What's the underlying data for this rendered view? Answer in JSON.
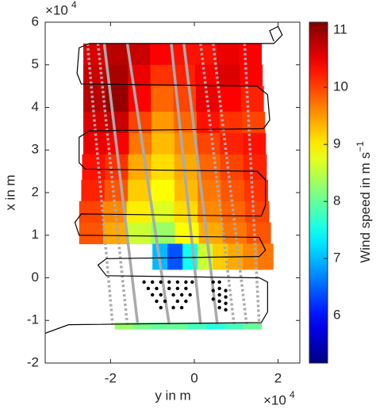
{
  "chart_data": {
    "type": "map",
    "x_label": "y in m",
    "y_label": "x in m",
    "x_offset": {
      "base": "×10",
      "exponent": "4"
    },
    "y_offset": {
      "base": "×10",
      "exponent": "4"
    },
    "xlim": [
      -3.56,
      2.52
    ],
    "ylim": [
      -2,
      6
    ],
    "xticks": [
      -2,
      0,
      2
    ],
    "yticks": [
      -2,
      -1,
      0,
      1,
      2,
      3,
      4,
      5,
      6
    ],
    "colormap": "jet",
    "colorbar": {
      "label": "Wind speed in m s",
      "label_exponent": "−1",
      "lim": [
        5.17,
        11.14
      ],
      "ticks": [
        6,
        7,
        8,
        9,
        10,
        11
      ]
    },
    "field": [
      {
        "y0": 5.0,
        "y1": 5.5,
        "x0": -2.65,
        "x1": 1.6,
        "values": [
          10.6,
          10.8,
          10.7,
          10.4,
          10.3,
          10.3,
          10.5,
          10.4
        ]
      },
      {
        "y0": 4.5,
        "y1": 5.0,
        "x0": -2.65,
        "x1": 1.62,
        "values": [
          10.7,
          10.9,
          10.5,
          10.1,
          10.2,
          10.4,
          10.6,
          10.4
        ]
      },
      {
        "y0": 3.9,
        "y1": 4.5,
        "x0": -2.65,
        "x1": 1.65,
        "values": [
          10.8,
          11.0,
          10.4,
          9.8,
          10.0,
          10.5,
          10.4,
          10.2
        ]
      },
      {
        "y0": 3.4,
        "y1": 3.9,
        "x0": -2.65,
        "x1": 1.68,
        "values": [
          10.6,
          10.7,
          10.0,
          9.5,
          9.8,
          10.3,
          10.1,
          10.0
        ]
      },
      {
        "y0": 2.9,
        "y1": 3.4,
        "x0": -2.65,
        "x1": 1.7,
        "values": [
          10.5,
          10.4,
          9.7,
          9.3,
          9.6,
          10.0,
          10.2,
          10.3
        ]
      },
      {
        "y0": 2.3,
        "y1": 2.9,
        "x0": -2.68,
        "x1": 1.72,
        "values": [
          10.3,
          10.1,
          9.4,
          9.1,
          9.4,
          9.8,
          10.0,
          10.2
        ]
      },
      {
        "y0": 1.8,
        "y1": 2.3,
        "x0": -2.7,
        "x1": 1.75,
        "values": [
          10.2,
          9.9,
          9.2,
          8.9,
          9.3,
          9.7,
          9.9,
          10.1
        ]
      },
      {
        "y0": 1.3,
        "y1": 1.8,
        "x0": -2.75,
        "x1": 1.78,
        "values": [
          10.0,
          9.6,
          9.0,
          8.7,
          9.1,
          9.6,
          9.8,
          10.0
        ]
      },
      {
        "y0": 0.8,
        "y1": 1.3,
        "x0": -2.75,
        "x1": 1.82,
        "values": [
          9.9,
          9.4,
          8.6,
          8.3,
          8.9,
          9.4,
          9.7,
          9.9
        ]
      },
      {
        "y0": 0.2,
        "y1": 0.8,
        "x0": -1.0,
        "x1": 1.88,
        "values": [
          7.0,
          6.4,
          7.5,
          8.6,
          9.2,
          9.4,
          9.6,
          9.7
        ]
      },
      {
        "y0": -1.2,
        "y1": -1.05,
        "x0": -1.9,
        "x1": 1.6,
        "values": [
          8.3,
          8.1,
          8.0,
          8.0,
          7.8,
          7.6,
          7.8,
          8.0
        ]
      }
    ],
    "track": {
      "color": "#000000",
      "x": [
        -3.56,
        -3.0,
        1.6,
        1.75,
        1.75,
        1.55,
        -2.1,
        -2.3,
        -2.1,
        1.55,
        1.7,
        1.55,
        -2.75,
        -2.85,
        -2.7,
        1.6,
        1.7,
        1.7,
        1.5,
        -2.6,
        -2.75,
        -2.75,
        -2.5,
        1.65,
        1.8,
        1.75,
        1.5,
        -2.7,
        -2.8,
        -2.75,
        -2.5,
        1.9,
        2.1,
        2.0,
        1.8,
        1.9
      ],
      "y": [
        -1.3,
        -1.1,
        -1.05,
        -0.8,
        -0.1,
        0.0,
        0.05,
        0.3,
        0.45,
        0.5,
        0.65,
        0.95,
        1.0,
        1.3,
        1.5,
        1.45,
        1.7,
        2.3,
        2.5,
        2.55,
        2.7,
        3.3,
        3.45,
        3.5,
        3.7,
        4.3,
        4.5,
        4.55,
        4.8,
        5.4,
        5.5,
        5.5,
        5.7,
        5.9,
        5.8,
        5.55
      ]
    },
    "legs": [
      {
        "style": "dotted",
        "x": [
          -2.55,
          -1.95
        ],
        "y": [
          5.5,
          -1.1
        ]
      },
      {
        "style": "dotted",
        "x": [
          -2.3,
          -1.6
        ],
        "y": [
          5.5,
          -1.1
        ]
      },
      {
        "style": "solid",
        "x": [
          -2.15,
          -1.35
        ],
        "y": [
          5.5,
          -1.1
        ]
      },
      {
        "style": "solid",
        "x": [
          -1.6,
          -0.6
        ],
        "y": [
          5.5,
          -1.1
        ]
      },
      {
        "style": "solid",
        "x": [
          -0.55,
          0.15
        ],
        "y": [
          5.5,
          -1.1
        ]
      },
      {
        "style": "solid",
        "x": [
          -0.25,
          0.55
        ],
        "y": [
          5.5,
          -1.1
        ]
      },
      {
        "style": "dotted",
        "x": [
          0.15,
          0.95
        ],
        "y": [
          5.5,
          -1.1
        ]
      },
      {
        "style": "dotted",
        "x": [
          0.45,
          1.25
        ],
        "y": [
          5.5,
          -1.1
        ]
      },
      {
        "style": "dotted",
        "x": [
          1.2,
          1.55
        ],
        "y": [
          5.5,
          -1.1
        ]
      }
    ],
    "points": {
      "color": "#000000",
      "x": [
        -1.2,
        -1.0,
        -0.8,
        -0.6,
        -0.4,
        -0.2,
        -0.05,
        -1.1,
        -0.9,
        -0.6,
        -0.4,
        -0.2,
        -1.0,
        -0.8,
        -0.5,
        -0.3,
        -0.1,
        -0.9,
        -0.7,
        -0.4,
        -0.2,
        -0.8,
        -0.5,
        -0.3,
        0.45,
        0.45,
        0.45,
        0.6,
        0.6,
        0.6,
        0.6,
        0.6,
        0.75,
        0.75,
        0.75,
        0.75
      ],
      "y": [
        -0.1,
        -0.1,
        -0.1,
        -0.1,
        -0.1,
        -0.1,
        -0.1,
        -0.25,
        -0.25,
        -0.25,
        -0.25,
        -0.25,
        -0.4,
        -0.4,
        -0.4,
        -0.4,
        -0.4,
        -0.55,
        -0.55,
        -0.55,
        -0.55,
        -0.7,
        -0.7,
        -0.7,
        -0.1,
        -0.3,
        -0.5,
        -0.1,
        -0.25,
        -0.4,
        -0.55,
        -0.7,
        -0.3,
        -0.45,
        -0.6,
        -0.75
      ]
    }
  }
}
